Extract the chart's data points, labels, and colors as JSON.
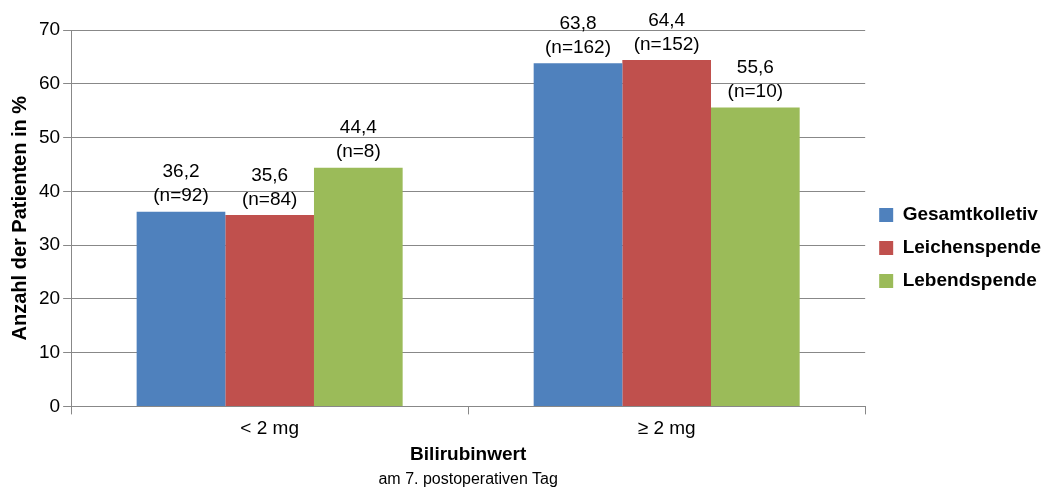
{
  "chart_data": {
    "type": "bar",
    "xlabel": "Bilirubinwert",
    "ylabel": "Anzahl der Patienten in %",
    "categories": [
      "< 2 mg",
      "≥ 2 mg"
    ],
    "series": [
      {
        "name": "Gesamtkolletiv",
        "color": "#4f81bd",
        "values": [
          36.2,
          63.8
        ],
        "value_labels": [
          "36,2\n(n=92)",
          "63,8\n(n=162)"
        ]
      },
      {
        "name": "Leichenspende",
        "color": "#c0504d",
        "values": [
          35.6,
          64.4
        ],
        "value_labels": [
          "35,6\n(n=84)",
          "64,4\n(n=152)"
        ]
      },
      {
        "name": "Lebendspende",
        "color": "#9bbb59",
        "values": [
          44.4,
          55.6
        ],
        "value_labels": [
          "44,4\n(n=8)",
          "55,6\n(n=10)"
        ]
      }
    ],
    "ylim": [
      0,
      70
    ],
    "yticks": [
      0,
      10,
      20,
      30,
      40,
      50,
      60,
      70
    ],
    "grid": "y",
    "legend": "right",
    "annotations": [
      "am 7. postoperativen Tag"
    ]
  }
}
